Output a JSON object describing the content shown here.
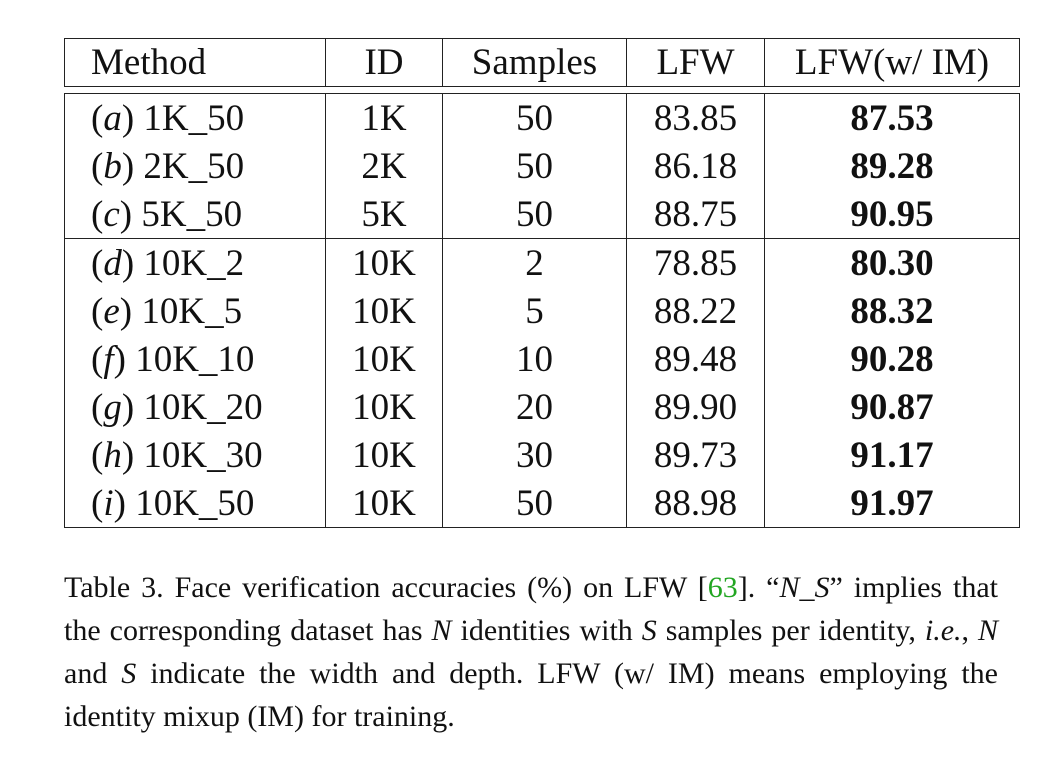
{
  "table": {
    "headers": [
      "Method",
      "ID",
      "Samples",
      "LFW",
      "LFW(w/ IM)"
    ],
    "rows": [
      {
        "letter": "a",
        "name": "1K_50",
        "id": "1K",
        "samples": "50",
        "lfw": "83.85",
        "lfw_im": "87.53"
      },
      {
        "letter": "b",
        "name": "2K_50",
        "id": "2K",
        "samples": "50",
        "lfw": "86.18",
        "lfw_im": "89.28"
      },
      {
        "letter": "c",
        "name": "5K_50",
        "id": "5K",
        "samples": "50",
        "lfw": "88.75",
        "lfw_im": "90.95"
      },
      {
        "letter": "d",
        "name": "10K_2",
        "id": "10K",
        "samples": "2",
        "lfw": "78.85",
        "lfw_im": "80.30"
      },
      {
        "letter": "e",
        "name": "10K_5",
        "id": "10K",
        "samples": "5",
        "lfw": "88.22",
        "lfw_im": "88.32"
      },
      {
        "letter": "f",
        "name": "10K_10",
        "id": "10K",
        "samples": "10",
        "lfw": "89.48",
        "lfw_im": "90.28"
      },
      {
        "letter": "g",
        "name": "10K_20",
        "id": "10K",
        "samples": "20",
        "lfw": "89.90",
        "lfw_im": "90.87"
      },
      {
        "letter": "h",
        "name": "10K_30",
        "id": "10K",
        "samples": "30",
        "lfw": "89.73",
        "lfw_im": "91.17"
      },
      {
        "letter": "i",
        "name": "10K_50",
        "id": "10K",
        "samples": "50",
        "lfw": "88.98",
        "lfw_im": "91.97"
      }
    ]
  },
  "caption": {
    "label": "Table 3.",
    "text_1": " Face verification accuracies (%) on LFW [",
    "cite": "63",
    "text_2": "]. “",
    "ns": "N_S",
    "text_3": "” implies that the corresponding dataset has ",
    "n": "N",
    "text_4": " identities with ",
    "s": "S",
    "text_5": " samples per identity, ",
    "ie": "i.e.",
    "text_6": ", ",
    "n2": "N",
    "text_7": " and ",
    "s2": "S",
    "text_8": " indicate the width and depth. LFW (w/ IM) means employing the identity mixup (IM) for training."
  }
}
